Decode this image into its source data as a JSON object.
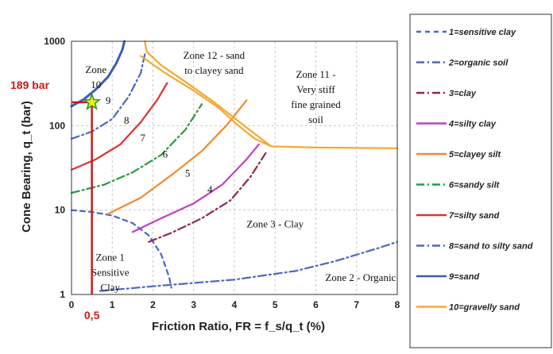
{
  "chart_data": {
    "type": "line",
    "title": "",
    "xlabel": "Friction Ratio, FR = f_s/q_t (%)",
    "ylabel": "Cone Bearing, q_t (bar)",
    "xlim": [
      0,
      8
    ],
    "ylim": [
      1,
      1000
    ],
    "y_scale": "log",
    "grid": true,
    "legend_position": "right",
    "x_ticks": [
      "0",
      "1",
      "2",
      "3",
      "4",
      "5",
      "6",
      "7",
      "8"
    ],
    "y_ticks": [
      "1",
      "10",
      "100",
      "1000"
    ],
    "series": [
      {
        "name": "1=sensitive clay",
        "color": "#4a67c0",
        "dash": "dash",
        "x": [
          0,
          0.5,
          1.0,
          1.5,
          1.9,
          2.2,
          2.4,
          2.45
        ],
        "y": [
          10,
          9.5,
          8.6,
          7.0,
          5.0,
          3.0,
          1.6,
          1.2
        ]
      },
      {
        "name": "2=organic soil",
        "color": "#4a67c0",
        "dash": "dashdot",
        "x": [
          0.7,
          2.0,
          4.0,
          5.5,
          6.5,
          7.5,
          8.0
        ],
        "y": [
          1.1,
          1.25,
          1.5,
          1.9,
          2.5,
          3.5,
          4.2
        ]
      },
      {
        "name": "3=clay",
        "color": "#8b2a55",
        "dash": "dashdot",
        "x": [
          1.9,
          2.5,
          3.2,
          3.9,
          4.4,
          4.8
        ],
        "y": [
          4.2,
          5.5,
          8.0,
          13,
          25,
          50
        ]
      },
      {
        "name": "4=silty clay",
        "color": "#c040c0",
        "dash": "solid",
        "x": [
          1.5,
          2.2,
          3.0,
          3.7,
          4.3,
          4.6
        ],
        "y": [
          5.5,
          8.0,
          12,
          20,
          40,
          60
        ]
      },
      {
        "name": "5=clayey silt",
        "color": "#f08a2a",
        "dash": "solid",
        "x": [
          0.9,
          1.7,
          2.5,
          3.2,
          3.8,
          4.3
        ],
        "y": [
          9.0,
          14,
          27,
          50,
          100,
          200
        ]
      },
      {
        "name": "6=sandy silt",
        "color": "#2a9a40",
        "dash": "dashdot",
        "x": [
          0,
          0.8,
          1.5,
          2.2,
          2.8,
          3.2
        ],
        "y": [
          16,
          20,
          28,
          45,
          90,
          180
        ]
      },
      {
        "name": "7=silty sand",
        "color": "#e03030",
        "dash": "solid",
        "x": [
          0,
          0.6,
          1.2,
          1.7,
          2.1,
          2.35
        ],
        "y": [
          30,
          40,
          60,
          110,
          200,
          320
        ]
      },
      {
        "name": "8=sand to silty sand",
        "color": "#4a67c0",
        "dash": "dashdot",
        "x": [
          0,
          0.5,
          1.0,
          1.4,
          1.7,
          1.8
        ],
        "y": [
          70,
          85,
          120,
          220,
          420,
          700
        ]
      },
      {
        "name": "9=sand",
        "color": "#3a5cb8",
        "dash": "solid",
        "x": [
          0,
          0.3,
          0.6,
          0.9,
          1.1,
          1.25,
          1.3
        ],
        "y": [
          170,
          205,
          270,
          380,
          550,
          800,
          1000
        ]
      },
      {
        "name": "10=gravelly sand",
        "color": "#f4a830",
        "dash": "solid",
        "x": [
          1.8,
          1.85,
          2.2,
          2.8,
          3.5,
          4.3,
          4.9,
          6.0,
          8.0
        ],
        "y": [
          1000,
          750,
          520,
          330,
          190,
          95,
          57,
          55,
          54
        ]
      },
      {
        "name": "",
        "color": "#f4a830",
        "dash": "solid",
        "x": [
          1.7,
          2.3,
          3.0,
          3.6,
          4.1,
          4.5,
          4.9
        ],
        "y": [
          670,
          420,
          260,
          165,
          100,
          70,
          57
        ]
      }
    ],
    "zone_labels": [
      {
        "lines": [
          "Zone",
          "10"
        ],
        "x": 0.6,
        "y": 420
      },
      {
        "lines": [
          "Zone 12 - sand",
          "to clayey sand"
        ],
        "x": 3.5,
        "y": 620
      },
      {
        "lines": [
          "Zone 11 -",
          "Very stiff",
          "fine grained",
          "soil"
        ],
        "x": 6.0,
        "y": 370
      },
      {
        "lines": [
          "Zone 3 - Clay"
        ],
        "x": 5.0,
        "y": 6.2
      },
      {
        "lines": [
          "Zone 2 - Organic"
        ],
        "x": 7.1,
        "y": 1.45
      },
      {
        "lines": [
          "Zone 1",
          "Sensitive",
          "Clay"
        ],
        "x": 0.95,
        "y": 2.5
      }
    ],
    "line_numbers": [
      {
        "label": "9",
        "x": 0.9,
        "y": 180
      },
      {
        "label": "8",
        "x": 1.35,
        "y": 105
      },
      {
        "label": "7",
        "x": 1.75,
        "y": 65
      },
      {
        "label": "6",
        "x": 2.3,
        "y": 42
      },
      {
        "label": "5",
        "x": 2.85,
        "y": 25
      },
      {
        "label": "4",
        "x": 3.4,
        "y": 16
      }
    ],
    "annotation": {
      "label_y": "189 bar",
      "label_x": "0,5",
      "x": 0.5,
      "y": 189,
      "color": "#d01818",
      "marker": "star"
    }
  }
}
